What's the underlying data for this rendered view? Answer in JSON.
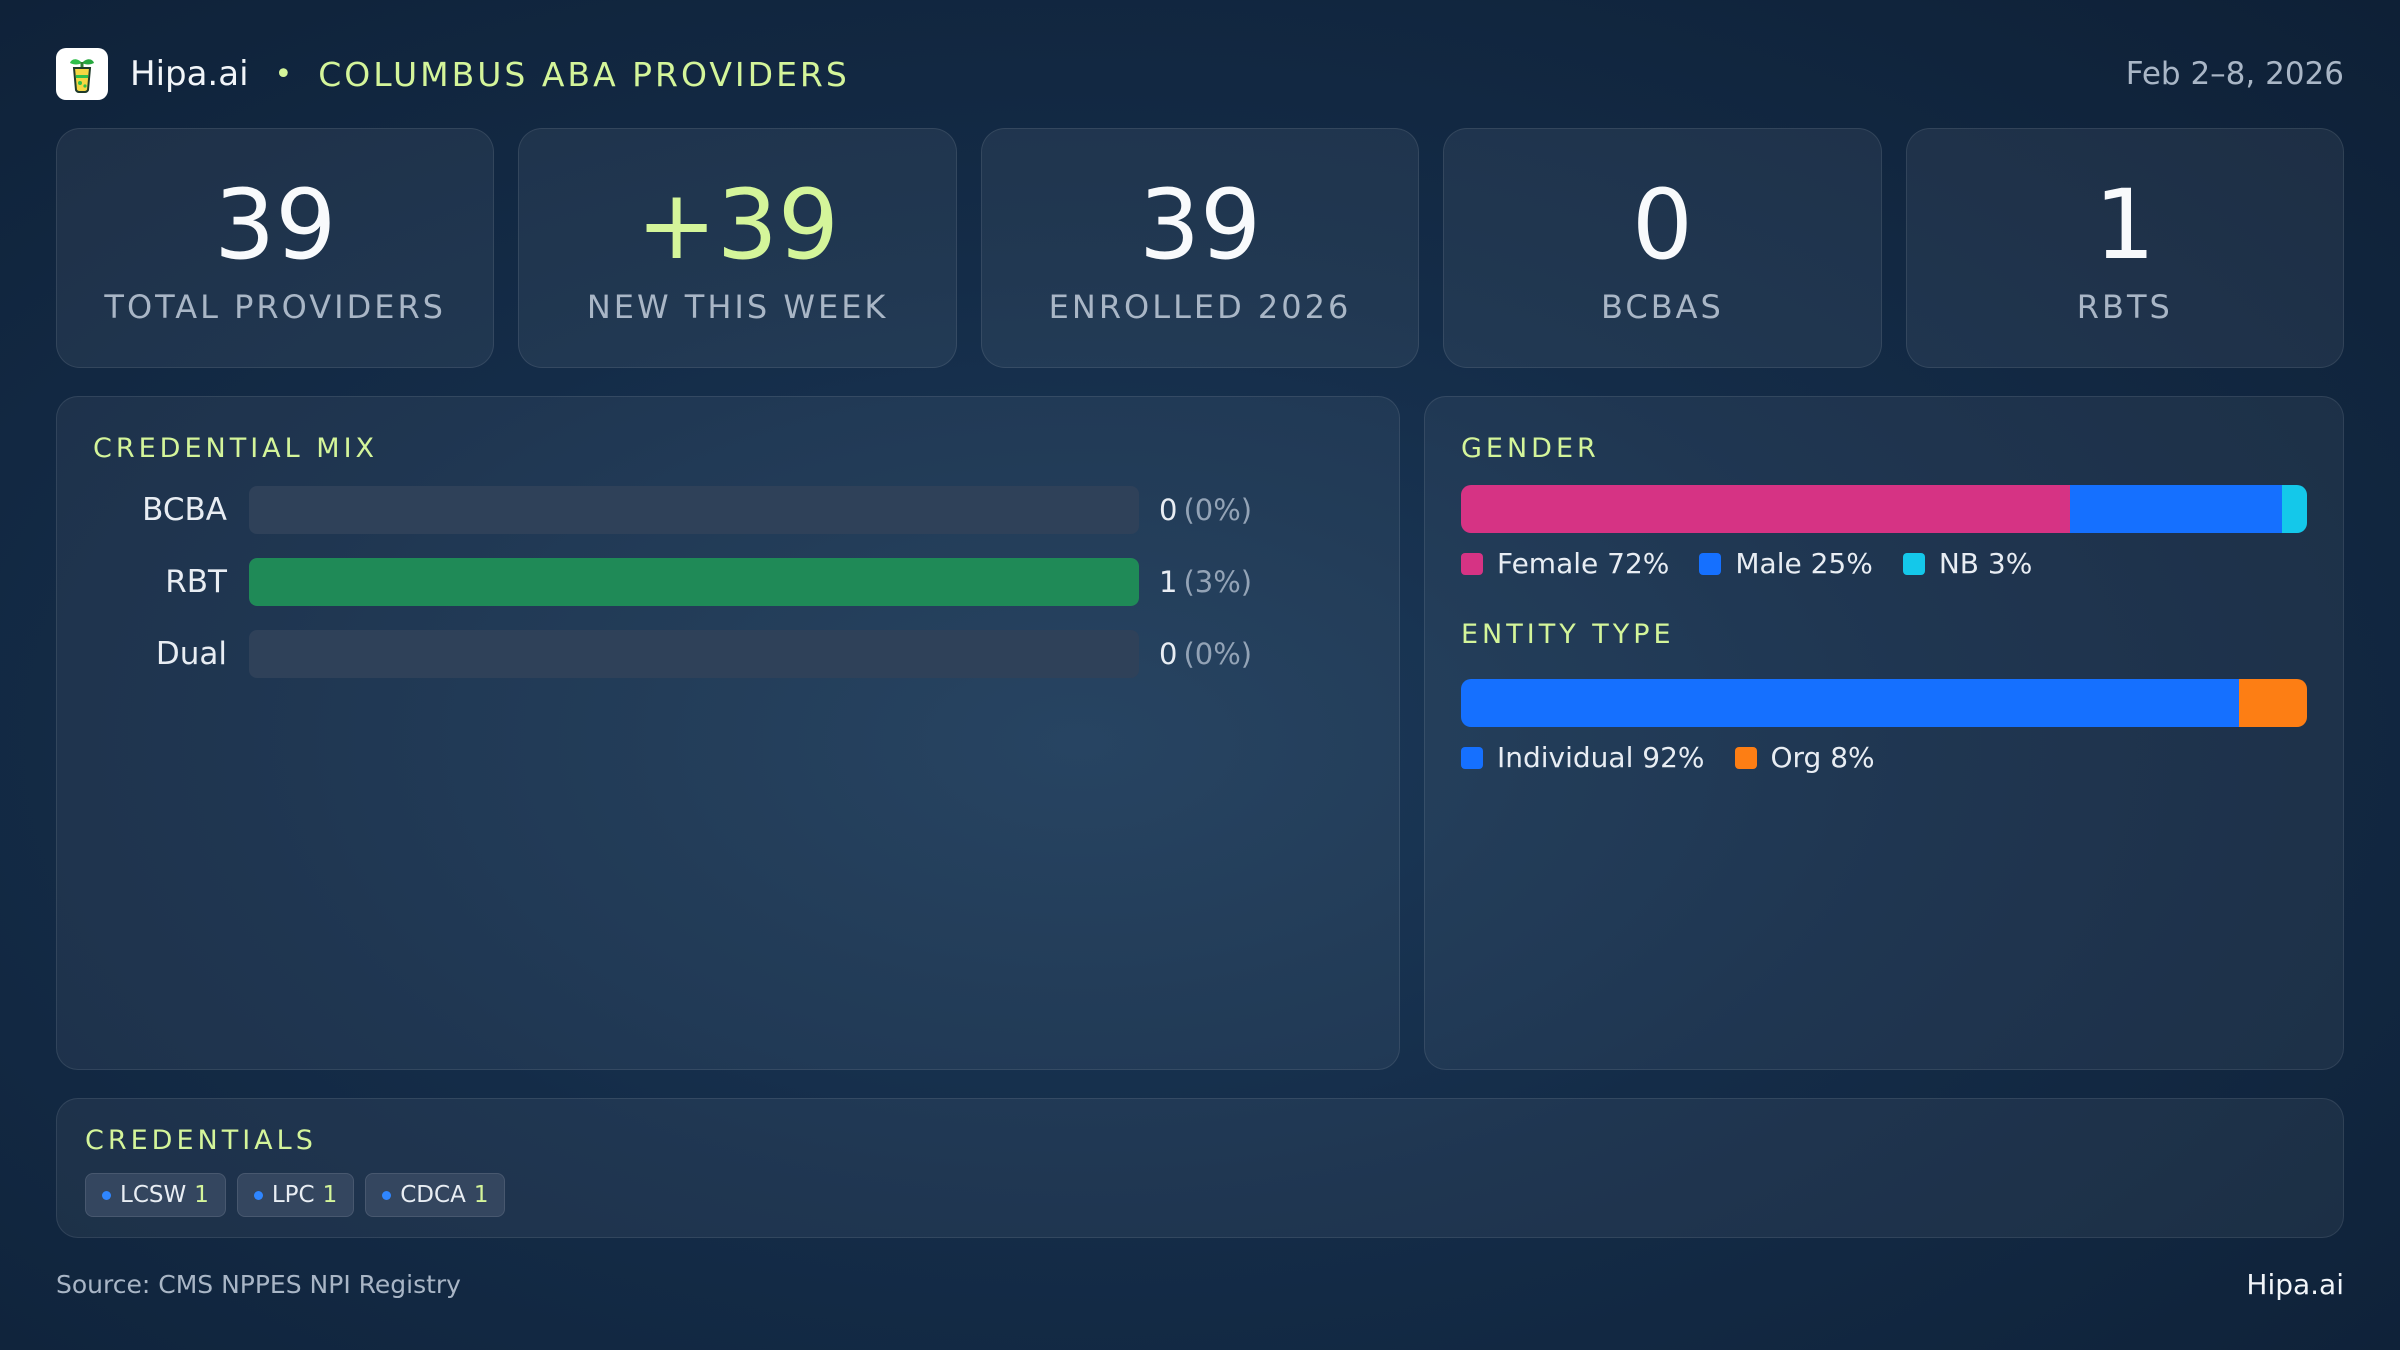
{
  "header": {
    "brand": "Hipa.ai",
    "separator": "•",
    "title": "COLUMBUS ABA PROVIDERS",
    "date_range": "Feb 2–8, 2026",
    "logo_icon": "beaker-plant-icon"
  },
  "kpis": [
    {
      "value": "39",
      "label": "TOTAL PROVIDERS",
      "accent": false
    },
    {
      "value": "+39",
      "label": "NEW THIS WEEK",
      "accent": true
    },
    {
      "value": "39",
      "label": "ENROLLED 2026",
      "accent": false
    },
    {
      "value": "0",
      "label": "BCBAS",
      "accent": false
    },
    {
      "value": "1",
      "label": "RBTS",
      "accent": false
    }
  ],
  "credential_mix": {
    "title": "CREDENTIAL MIX",
    "rows": [
      {
        "label": "BCBA",
        "count": "0",
        "pct": "(0%)",
        "fill": 0
      },
      {
        "label": "RBT",
        "count": "1",
        "pct": "(3%)",
        "fill": 1.0
      },
      {
        "label": "Dual",
        "count": "0",
        "pct": "(0%)",
        "fill": 0
      }
    ]
  },
  "gender": {
    "title": "GENDER",
    "segments": [
      {
        "label": "Female 72%",
        "value": 72,
        "color": "#d63384"
      },
      {
        "label": "Male 25%",
        "value": 25,
        "color": "#1570ff"
      },
      {
        "label": "NB 3%",
        "value": 3,
        "color": "#14c8ea"
      }
    ]
  },
  "entity_type": {
    "title": "ENTITY TYPE",
    "segments": [
      {
        "label": "Individual 92%",
        "value": 92,
        "color": "#1570ff"
      },
      {
        "label": "Org 8%",
        "value": 8,
        "color": "#fd7e14"
      }
    ]
  },
  "credentials": {
    "title": "CREDENTIALS",
    "chips": [
      {
        "label": "LCSW",
        "count": "1"
      },
      {
        "label": "LPC",
        "count": "1"
      },
      {
        "label": "CDCA",
        "count": "1"
      }
    ]
  },
  "footer": {
    "source": "Source: CMS NPPES NPI Registry",
    "brand": "Hipa.ai"
  },
  "colors": {
    "accent": "#d4f59a",
    "rbt_bar": "#1f8a57",
    "track": "#2f4159"
  }
}
